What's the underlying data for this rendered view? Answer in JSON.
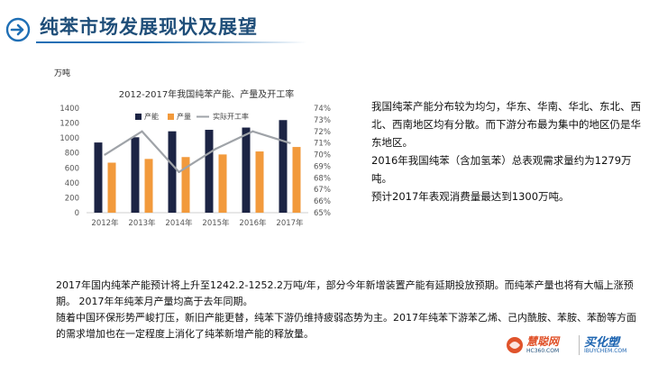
{
  "header": {
    "title": "纯苯市场发展现状及展望"
  },
  "chart_data": {
    "type": "bar",
    "title": "2012-2017年我国纯苯产能、产量及开工率",
    "unit_label": "万吨",
    "categories": [
      "2012年",
      "2013年",
      "2014年",
      "2015年",
      "2016年",
      "2017年"
    ],
    "series": [
      {
        "name": "产能",
        "type": "bar",
        "axis": "left",
        "color": "#1c2444",
        "values": [
          940,
          1010,
          1090,
          1110,
          1140,
          1240
        ]
      },
      {
        "name": "产量",
        "type": "bar",
        "axis": "left",
        "color": "#f29a3c",
        "values": [
          670,
          720,
          745,
          780,
          820,
          880
        ]
      },
      {
        "name": "实际开工率",
        "type": "line",
        "axis": "right",
        "color": "#9fa3a8",
        "values": [
          70,
          72,
          68.5,
          70.5,
          72,
          71
        ]
      }
    ],
    "ylim": [
      0,
      1400
    ],
    "yticks": [
      0,
      200,
      400,
      600,
      800,
      1000,
      1200,
      1400
    ],
    "y2lim": [
      65,
      74
    ],
    "y2ticks": [
      "65%",
      "66%",
      "67%",
      "68%",
      "69%",
      "70%",
      "71%",
      "72%",
      "73%",
      "74%"
    ],
    "legend_position": "top"
  },
  "right_paragraphs": [
    "我国纯苯产能分布较为均匀，华东、华南、华北、东北、西北、西南地区均有分散。而下游分布最为集中的地区仍是华东地区。",
    "2016年我国纯苯（含加氢苯）总表观需求量约为1279万吨。",
    "预计2017年表观消费量最达到1300万吨。"
  ],
  "bottom_paragraphs": [
    "2017年国内纯苯产能预计将上升至1242.2-1252.2万吨/年，部分今年新增装置产能有延期投放预期。而纯苯产量也将有大幅上涨预期。 2017年年纯苯月产量均高于去年同期。",
    "随着中国环保形势严峻打压，新旧产能更替，纯苯下游仍维持疲弱态势为主。2017年纯苯下游苯乙烯、己内酰胺、苯胺、苯酚等方面的需求增加也在一定程度上消化了纯苯新增产能的释放量。"
  ],
  "logo": {
    "brand1": "慧聪网",
    "brand1_sub": "HC360.COM",
    "brand2": "买化塑",
    "brand2_sub": "IBUYCHEM.COM"
  },
  "colors": {
    "title": "#1f4e79",
    "accent": "#1f6fb5"
  }
}
